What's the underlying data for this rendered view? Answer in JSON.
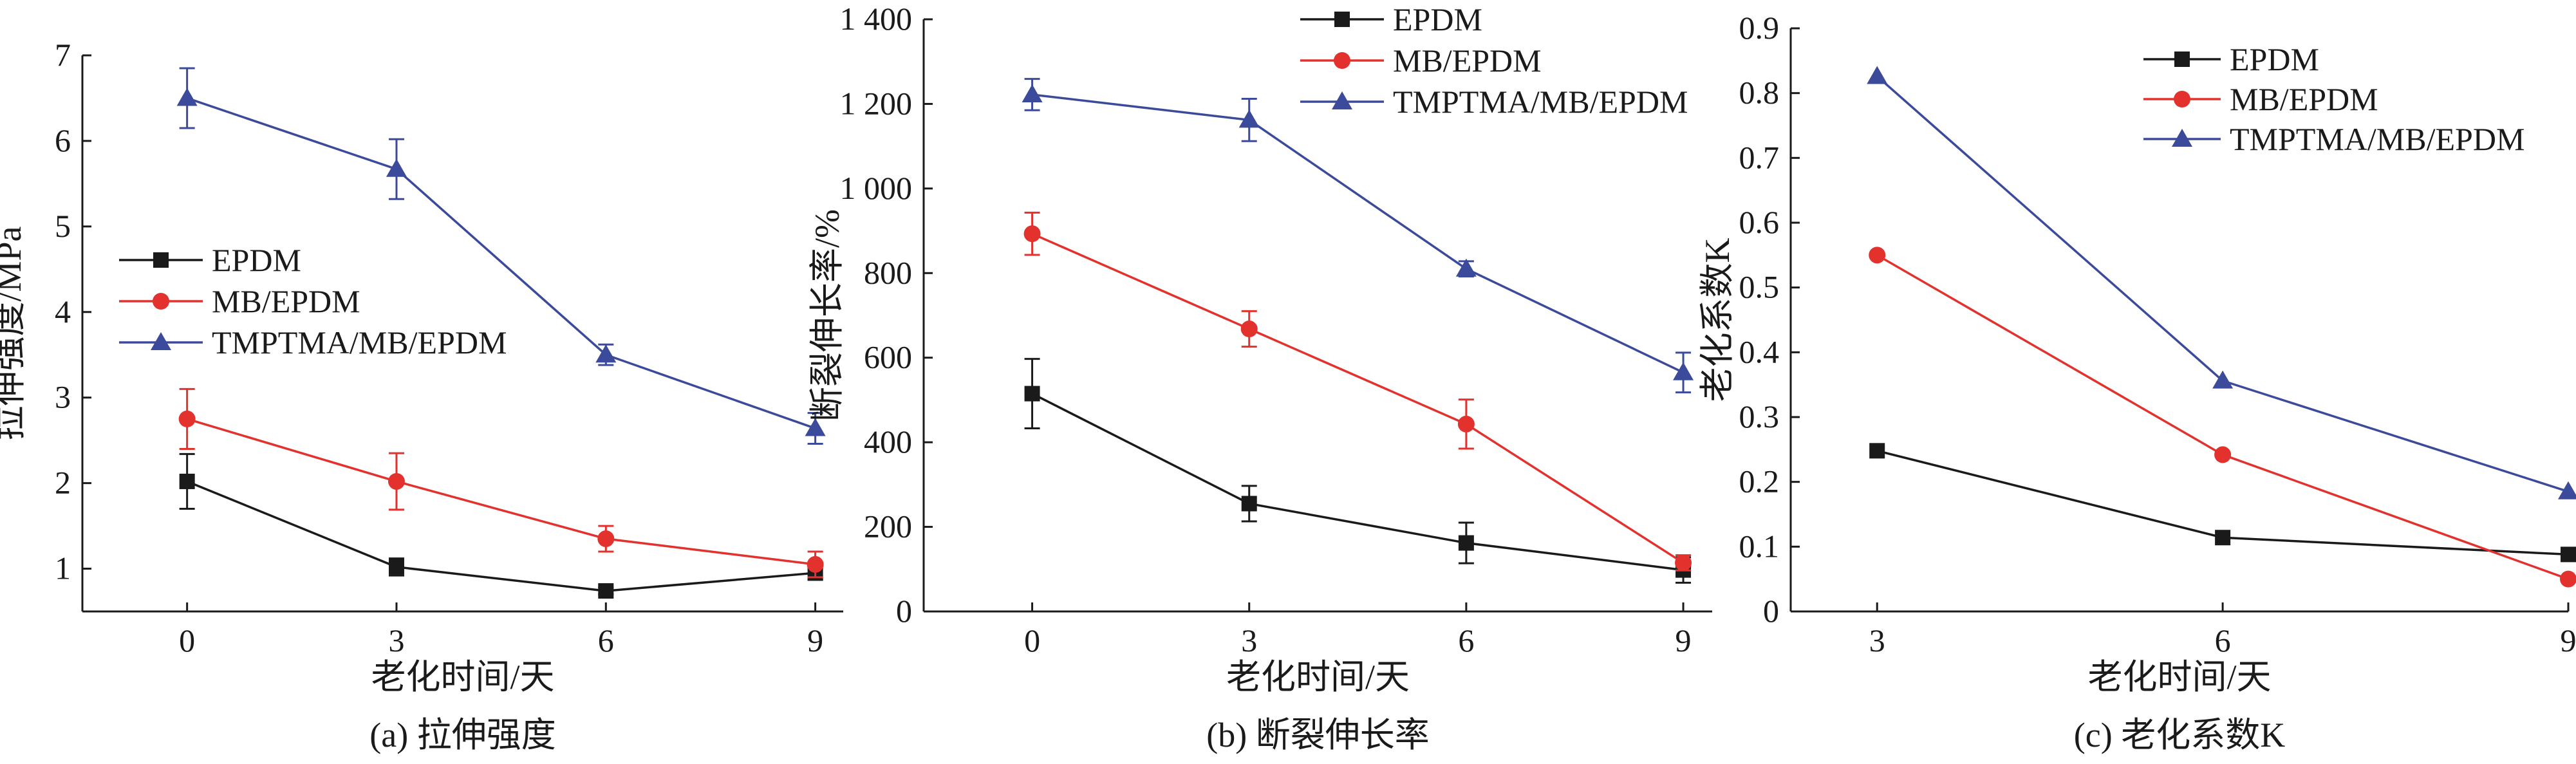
{
  "colors": {
    "EPDM": "#1a1a1a",
    "MB/EPDM": "#e3312d",
    "TMPTMA/MB/EPDM": "#3b4a9a"
  },
  "chart_data": [
    {
      "id": "a",
      "type": "line",
      "caption": "(a) 拉伸强度",
      "xlabel": "老化时间/天",
      "ylabel": "拉伸强度/MPa",
      "x": [
        0,
        3,
        6,
        9
      ],
      "x_ticks": [
        "0",
        "3",
        "6",
        "9"
      ],
      "xlim": [
        -1.5,
        9.4
      ],
      "ylim": [
        0.5,
        7
      ],
      "y_ticks": [
        "1",
        "2",
        "3",
        "4",
        "5",
        "6",
        "7"
      ],
      "legend_position": "middle-left",
      "series": [
        {
          "name": "EPDM",
          "marker": "square",
          "values": [
            2.02,
            1.02,
            0.74,
            0.95
          ],
          "errors": [
            0.32,
            0.1,
            0.04,
            0.08
          ]
        },
        {
          "name": "MB/EPDM",
          "marker": "circle",
          "values": [
            2.75,
            2.02,
            1.35,
            1.05
          ],
          "errors": [
            0.35,
            0.33,
            0.15,
            0.15
          ]
        },
        {
          "name": "TMPTMA/MB/EPDM",
          "marker": "triangle",
          "values": [
            6.5,
            5.67,
            3.5,
            2.64
          ],
          "errors": [
            0.35,
            0.35,
            0.12,
            0.18
          ]
        }
      ]
    },
    {
      "id": "b",
      "type": "line",
      "caption": "(b) 断裂伸长率",
      "xlabel": "老化时间/天",
      "ylabel": "断裂伸长率/%",
      "x": [
        0,
        3,
        6,
        9
      ],
      "x_ticks": [
        "0",
        "3",
        "6",
        "9"
      ],
      "xlim": [
        -1.5,
        9.4
      ],
      "ylim": [
        0,
        1400
      ],
      "y_ticks": [
        "0",
        "200",
        "400",
        "600",
        "800",
        "1 000",
        "1 200",
        "1 400"
      ],
      "legend_position": "top-right",
      "series": [
        {
          "name": "EPDM",
          "marker": "square",
          "values": [
            515,
            255,
            162,
            98
          ],
          "errors": [
            82,
            42,
            48,
            30
          ]
        },
        {
          "name": "MB/EPDM",
          "marker": "circle",
          "values": [
            893,
            668,
            443,
            115
          ],
          "errors": [
            50,
            42,
            58,
            18
          ]
        },
        {
          "name": "TMPTMA/MB/EPDM",
          "marker": "triangle",
          "values": [
            1222,
            1162,
            810,
            565
          ],
          "errors": [
            37,
            50,
            18,
            47
          ]
        }
      ]
    },
    {
      "id": "c",
      "type": "line",
      "caption": "(c) 老化系数K",
      "xlabel": "老化时间/天",
      "ylabel": "老化系数K",
      "x": [
        3,
        6,
        9
      ],
      "x_ticks": [
        "3",
        "6",
        "9"
      ],
      "xlim": [
        2.25,
        9
      ],
      "ylim": [
        0,
        0.9
      ],
      "y_ticks": [
        "0",
        "0.1",
        "0.2",
        "0.3",
        "0.4",
        "0.5",
        "0.6",
        "0.7",
        "0.8",
        "0.9"
      ],
      "legend_position": "top-right",
      "series": [
        {
          "name": "EPDM",
          "marker": "square",
          "values": [
            0.248,
            0.114,
            0.088
          ],
          "errors": [
            0,
            0,
            0
          ]
        },
        {
          "name": "MB/EPDM",
          "marker": "circle",
          "values": [
            0.55,
            0.242,
            0.05
          ],
          "errors": [
            0,
            0,
            0
          ]
        },
        {
          "name": "TMPTMA/MB/EPDM",
          "marker": "triangle",
          "values": [
            0.826,
            0.356,
            0.185
          ],
          "errors": [
            0,
            0,
            0
          ]
        }
      ]
    }
  ]
}
